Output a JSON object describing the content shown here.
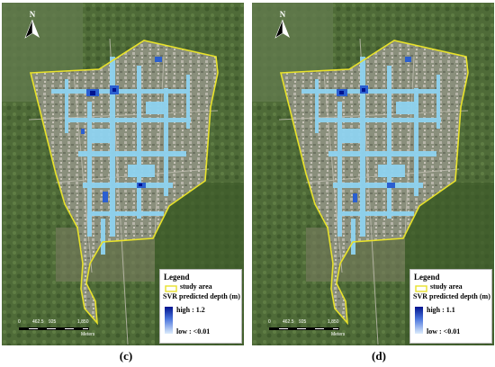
{
  "panels": [
    {
      "id": "c",
      "caption": "(c)",
      "north": "N",
      "legend": {
        "title": "Legend",
        "study_area_label": "study area",
        "depth_label": "SVR predicted depth (m)",
        "high_label": "high : 1.2",
        "low_label": "low : <0.01"
      },
      "scale": {
        "labels": [
          "0",
          "462.5",
          "925",
          "1,850"
        ],
        "unit": "Meters"
      }
    },
    {
      "id": "d",
      "caption": "(d)",
      "north": "N",
      "legend": {
        "title": "Legend",
        "study_area_label": "study area",
        "depth_label": "SVR predicted depth (m)",
        "high_label": "high : 1.1",
        "low_label": "low : <0.01"
      },
      "scale": {
        "labels": [
          "0",
          "462.5",
          "925",
          "1,850"
        ],
        "unit": "Meters"
      }
    }
  ],
  "colors": {
    "study_area_outline": "#e8e22a",
    "depth_high": "#00138f",
    "depth_low": "#dcecfc",
    "flood_light": "#8fd3f0"
  }
}
